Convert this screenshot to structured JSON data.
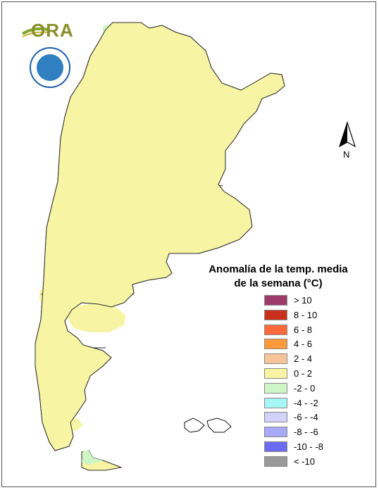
{
  "logo": {
    "text": "ORA",
    "name": "ora-logo"
  },
  "seal": {
    "name": "servicio-meteorologico-nacional-seal"
  },
  "north_arrow": {
    "label": "N"
  },
  "legend": {
    "title_line1": "Anomalía de la temp. media",
    "title_line2": "de la semana (°C)",
    "items": [
      {
        "label": "> 10",
        "color": "#9c3a6a"
      },
      {
        "label": "8 - 10",
        "color": "#c9301c"
      },
      {
        "label": "6 - 8",
        "color": "#ff6a3a"
      },
      {
        "label": "4 - 6",
        "color": "#ff9a3c"
      },
      {
        "label": "2 - 4",
        "color": "#f7c49a"
      },
      {
        "label": "0 - 2",
        "color": "#f7f5a4"
      },
      {
        "label": "-2 - 0",
        "color": "#cdf5c6"
      },
      {
        "label": "-4 - -2",
        "color": "#a6f7f3"
      },
      {
        "label": "-6 - -4",
        "color": "#d1d1fb"
      },
      {
        "label": "-8 - -6",
        "color": "#a9a9f9"
      },
      {
        "label": "-10 - -8",
        "color": "#6c6cf2"
      },
      {
        "label": "< -10",
        "color": "#9a9a9a"
      }
    ]
  },
  "map_colors": {
    "neutral_warm": "#f7f5a4",
    "cool": "#cdf5c6",
    "warm": "#f7c49a",
    "border": "#2b2b2b"
  }
}
